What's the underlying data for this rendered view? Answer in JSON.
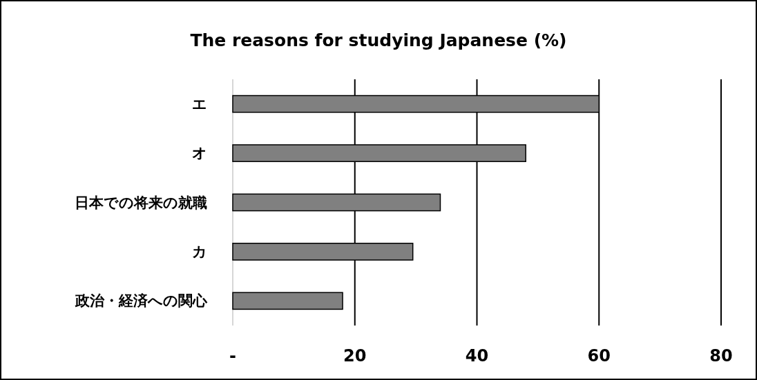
{
  "chart_data": {
    "type": "bar",
    "orientation": "horizontal",
    "title": "The reasons for studying Japanese (%)",
    "categories": [
      "エ",
      "オ",
      "日本での将来の就職",
      "カ",
      "政治・経済への関心"
    ],
    "values": [
      60,
      48,
      34,
      29.5,
      18
    ],
    "color": "#808080",
    "xlim": [
      0,
      80
    ],
    "xticks": [
      {
        "value": 0,
        "label": "-"
      },
      20,
      40,
      60,
      80
    ],
    "grid": "x"
  }
}
